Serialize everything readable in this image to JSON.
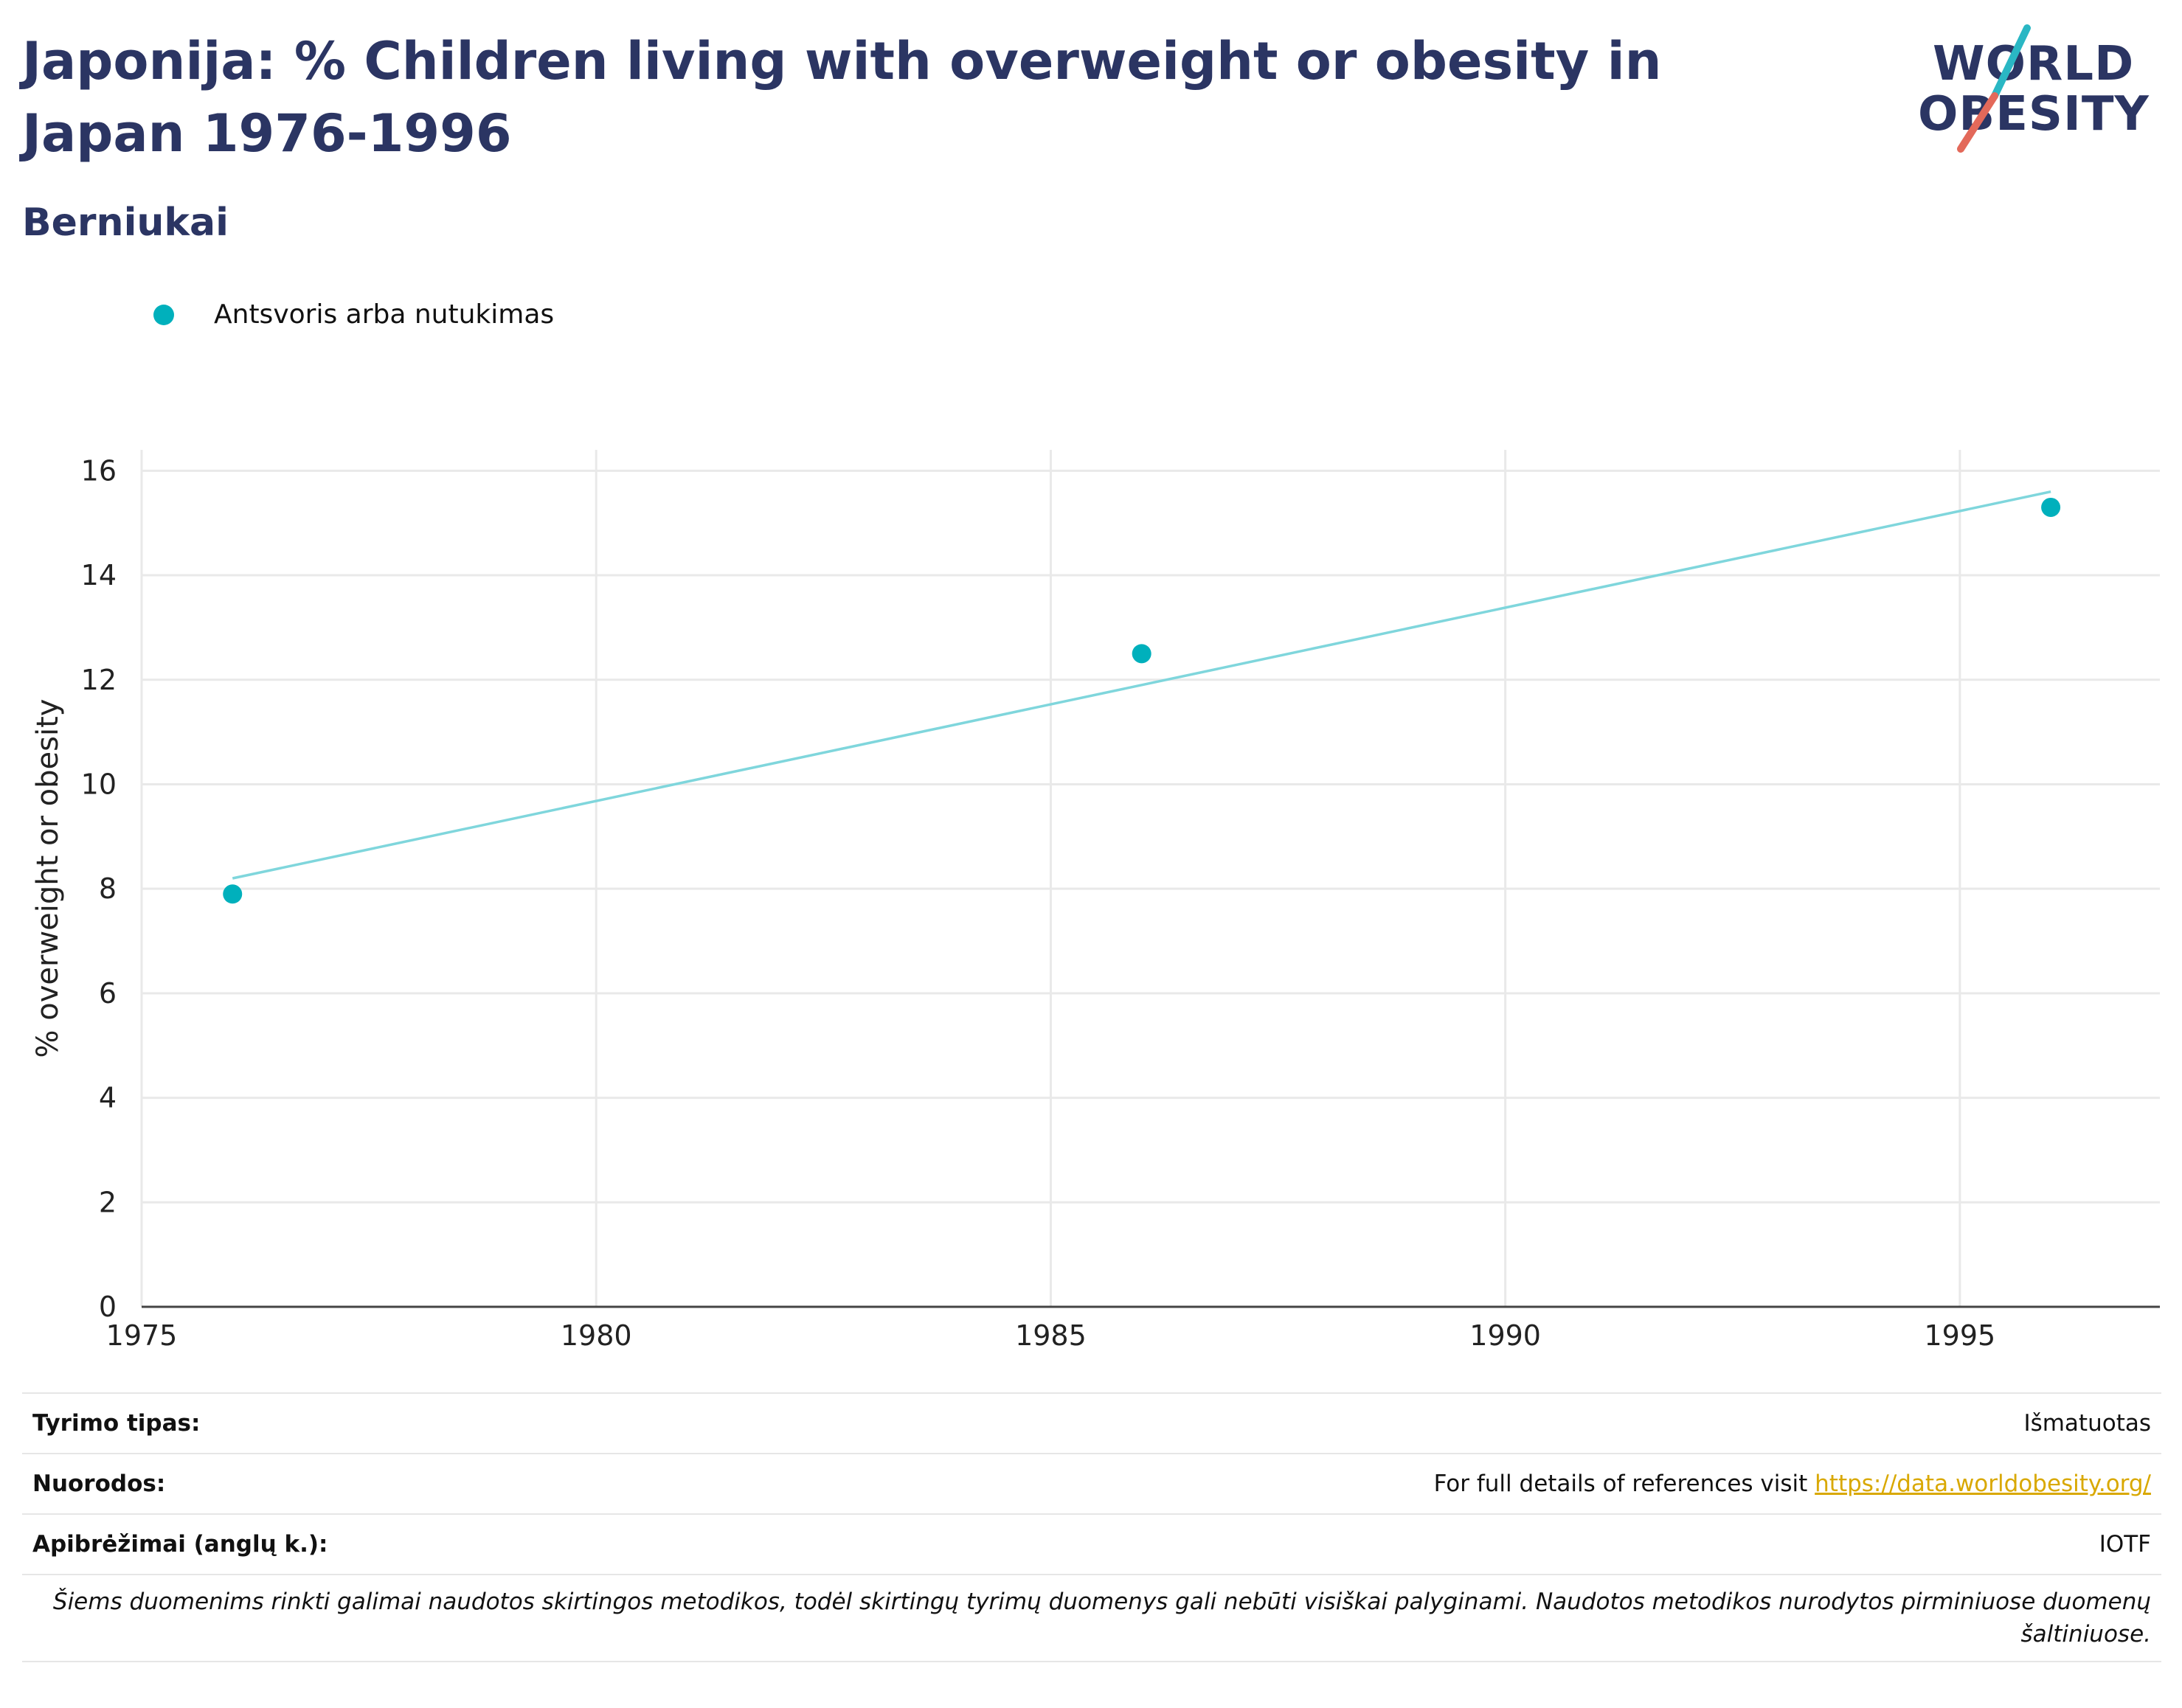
{
  "header": {
    "title": "Japonija: % Children living with overweight or obesity in Japan 1976-1996",
    "subtitle": "Berniukai"
  },
  "logo": {
    "line1": "WORLD",
    "line2": "OBESITY",
    "colors": {
      "text": "#2b3563",
      "slash_top": "#2ab7c4",
      "slash_bottom": "#e3695a"
    }
  },
  "legend": {
    "label": "Antsvoris arba nutukimas",
    "color": "#00b0bc"
  },
  "chart_data": {
    "type": "scatter",
    "title": "Japonija: % Children living with overweight or obesity in Japan 1976-1996",
    "subtitle": "Berniukai",
    "xlabel": "",
    "ylabel": "% overweight or obesity",
    "xlim": [
      1975,
      1997.2
    ],
    "ylim": [
      0,
      16.4
    ],
    "xticks": [
      1975,
      1980,
      1985,
      1990,
      1995
    ],
    "yticks": [
      0,
      2,
      4,
      6,
      8,
      10,
      12,
      14,
      16
    ],
    "grid": true,
    "legend_position": "top-left",
    "series": [
      {
        "name": "Antsvoris arba nutukimas",
        "color": "#00b0bc",
        "x": [
          1976,
          1986,
          1996
        ],
        "y": [
          7.9,
          12.5,
          15.3
        ]
      }
    ],
    "trendline": {
      "color": "#7fd6dc",
      "x": [
        1976,
        1996
      ],
      "y": [
        8.2,
        15.6
      ]
    }
  },
  "info": {
    "study_type_label": "Tyrimo tipas:",
    "study_type_value": "Išmatuotas",
    "references_label": "Nuorodos:",
    "references_text": "For full details of references visit ",
    "references_link": "https://data.worldobesity.org/",
    "definitions_label": "Apibrėžimai (anglų k.):",
    "definitions_value": "IOTF",
    "note": "Šiems duomenims rinkti galimai naudotos skirtingos metodikos, todėl skirtingų tyrimų duomenys gali nebūti visiškai palyginami. Naudotos metodikos nurodytos pirminiuose duomenų šaltiniuose."
  }
}
